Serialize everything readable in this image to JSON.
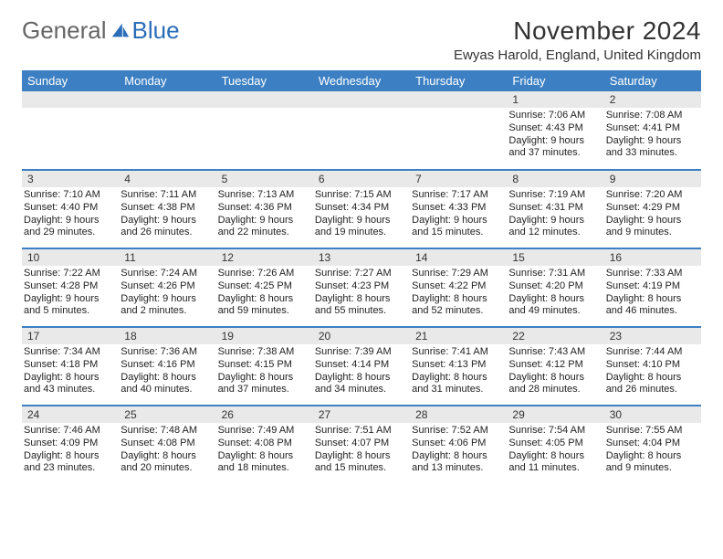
{
  "logo": {
    "text1": "General",
    "text2": "Blue"
  },
  "title": "November 2024",
  "location": "Ewyas Harold, England, United Kingdom",
  "weekdays": [
    "Sunday",
    "Monday",
    "Tuesday",
    "Wednesday",
    "Thursday",
    "Friday",
    "Saturday"
  ],
  "colors": {
    "header_bg": "#3c80c3",
    "header_text": "#ffffff",
    "daynum_bg": "#e9e9e9",
    "row_border": "#3c80c3",
    "logo_blue": "#2a6db8"
  },
  "typography": {
    "title_fontsize": 28,
    "location_fontsize": 15,
    "weekday_fontsize": 13,
    "daynum_fontsize": 12,
    "body_fontsize": 11
  },
  "layout": {
    "columns": 7,
    "rows": 5,
    "first_weekday_index": 5
  },
  "days": [
    {
      "n": 1,
      "sunrise": "7:06 AM",
      "sunset": "4:43 PM",
      "daylight": "9 hours and 37 minutes."
    },
    {
      "n": 2,
      "sunrise": "7:08 AM",
      "sunset": "4:41 PM",
      "daylight": "9 hours and 33 minutes."
    },
    {
      "n": 3,
      "sunrise": "7:10 AM",
      "sunset": "4:40 PM",
      "daylight": "9 hours and 29 minutes."
    },
    {
      "n": 4,
      "sunrise": "7:11 AM",
      "sunset": "4:38 PM",
      "daylight": "9 hours and 26 minutes."
    },
    {
      "n": 5,
      "sunrise": "7:13 AM",
      "sunset": "4:36 PM",
      "daylight": "9 hours and 22 minutes."
    },
    {
      "n": 6,
      "sunrise": "7:15 AM",
      "sunset": "4:34 PM",
      "daylight": "9 hours and 19 minutes."
    },
    {
      "n": 7,
      "sunrise": "7:17 AM",
      "sunset": "4:33 PM",
      "daylight": "9 hours and 15 minutes."
    },
    {
      "n": 8,
      "sunrise": "7:19 AM",
      "sunset": "4:31 PM",
      "daylight": "9 hours and 12 minutes."
    },
    {
      "n": 9,
      "sunrise": "7:20 AM",
      "sunset": "4:29 PM",
      "daylight": "9 hours and 9 minutes."
    },
    {
      "n": 10,
      "sunrise": "7:22 AM",
      "sunset": "4:28 PM",
      "daylight": "9 hours and 5 minutes."
    },
    {
      "n": 11,
      "sunrise": "7:24 AM",
      "sunset": "4:26 PM",
      "daylight": "9 hours and 2 minutes."
    },
    {
      "n": 12,
      "sunrise": "7:26 AM",
      "sunset": "4:25 PM",
      "daylight": "8 hours and 59 minutes."
    },
    {
      "n": 13,
      "sunrise": "7:27 AM",
      "sunset": "4:23 PM",
      "daylight": "8 hours and 55 minutes."
    },
    {
      "n": 14,
      "sunrise": "7:29 AM",
      "sunset": "4:22 PM",
      "daylight": "8 hours and 52 minutes."
    },
    {
      "n": 15,
      "sunrise": "7:31 AM",
      "sunset": "4:20 PM",
      "daylight": "8 hours and 49 minutes."
    },
    {
      "n": 16,
      "sunrise": "7:33 AM",
      "sunset": "4:19 PM",
      "daylight": "8 hours and 46 minutes."
    },
    {
      "n": 17,
      "sunrise": "7:34 AM",
      "sunset": "4:18 PM",
      "daylight": "8 hours and 43 minutes."
    },
    {
      "n": 18,
      "sunrise": "7:36 AM",
      "sunset": "4:16 PM",
      "daylight": "8 hours and 40 minutes."
    },
    {
      "n": 19,
      "sunrise": "7:38 AM",
      "sunset": "4:15 PM",
      "daylight": "8 hours and 37 minutes."
    },
    {
      "n": 20,
      "sunrise": "7:39 AM",
      "sunset": "4:14 PM",
      "daylight": "8 hours and 34 minutes."
    },
    {
      "n": 21,
      "sunrise": "7:41 AM",
      "sunset": "4:13 PM",
      "daylight": "8 hours and 31 minutes."
    },
    {
      "n": 22,
      "sunrise": "7:43 AM",
      "sunset": "4:12 PM",
      "daylight": "8 hours and 28 minutes."
    },
    {
      "n": 23,
      "sunrise": "7:44 AM",
      "sunset": "4:10 PM",
      "daylight": "8 hours and 26 minutes."
    },
    {
      "n": 24,
      "sunrise": "7:46 AM",
      "sunset": "4:09 PM",
      "daylight": "8 hours and 23 minutes."
    },
    {
      "n": 25,
      "sunrise": "7:48 AM",
      "sunset": "4:08 PM",
      "daylight": "8 hours and 20 minutes."
    },
    {
      "n": 26,
      "sunrise": "7:49 AM",
      "sunset": "4:08 PM",
      "daylight": "8 hours and 18 minutes."
    },
    {
      "n": 27,
      "sunrise": "7:51 AM",
      "sunset": "4:07 PM",
      "daylight": "8 hours and 15 minutes."
    },
    {
      "n": 28,
      "sunrise": "7:52 AM",
      "sunset": "4:06 PM",
      "daylight": "8 hours and 13 minutes."
    },
    {
      "n": 29,
      "sunrise": "7:54 AM",
      "sunset": "4:05 PM",
      "daylight": "8 hours and 11 minutes."
    },
    {
      "n": 30,
      "sunrise": "7:55 AM",
      "sunset": "4:04 PM",
      "daylight": "8 hours and 9 minutes."
    }
  ],
  "labels": {
    "sunrise": "Sunrise:",
    "sunset": "Sunset:",
    "daylight": "Daylight:"
  }
}
